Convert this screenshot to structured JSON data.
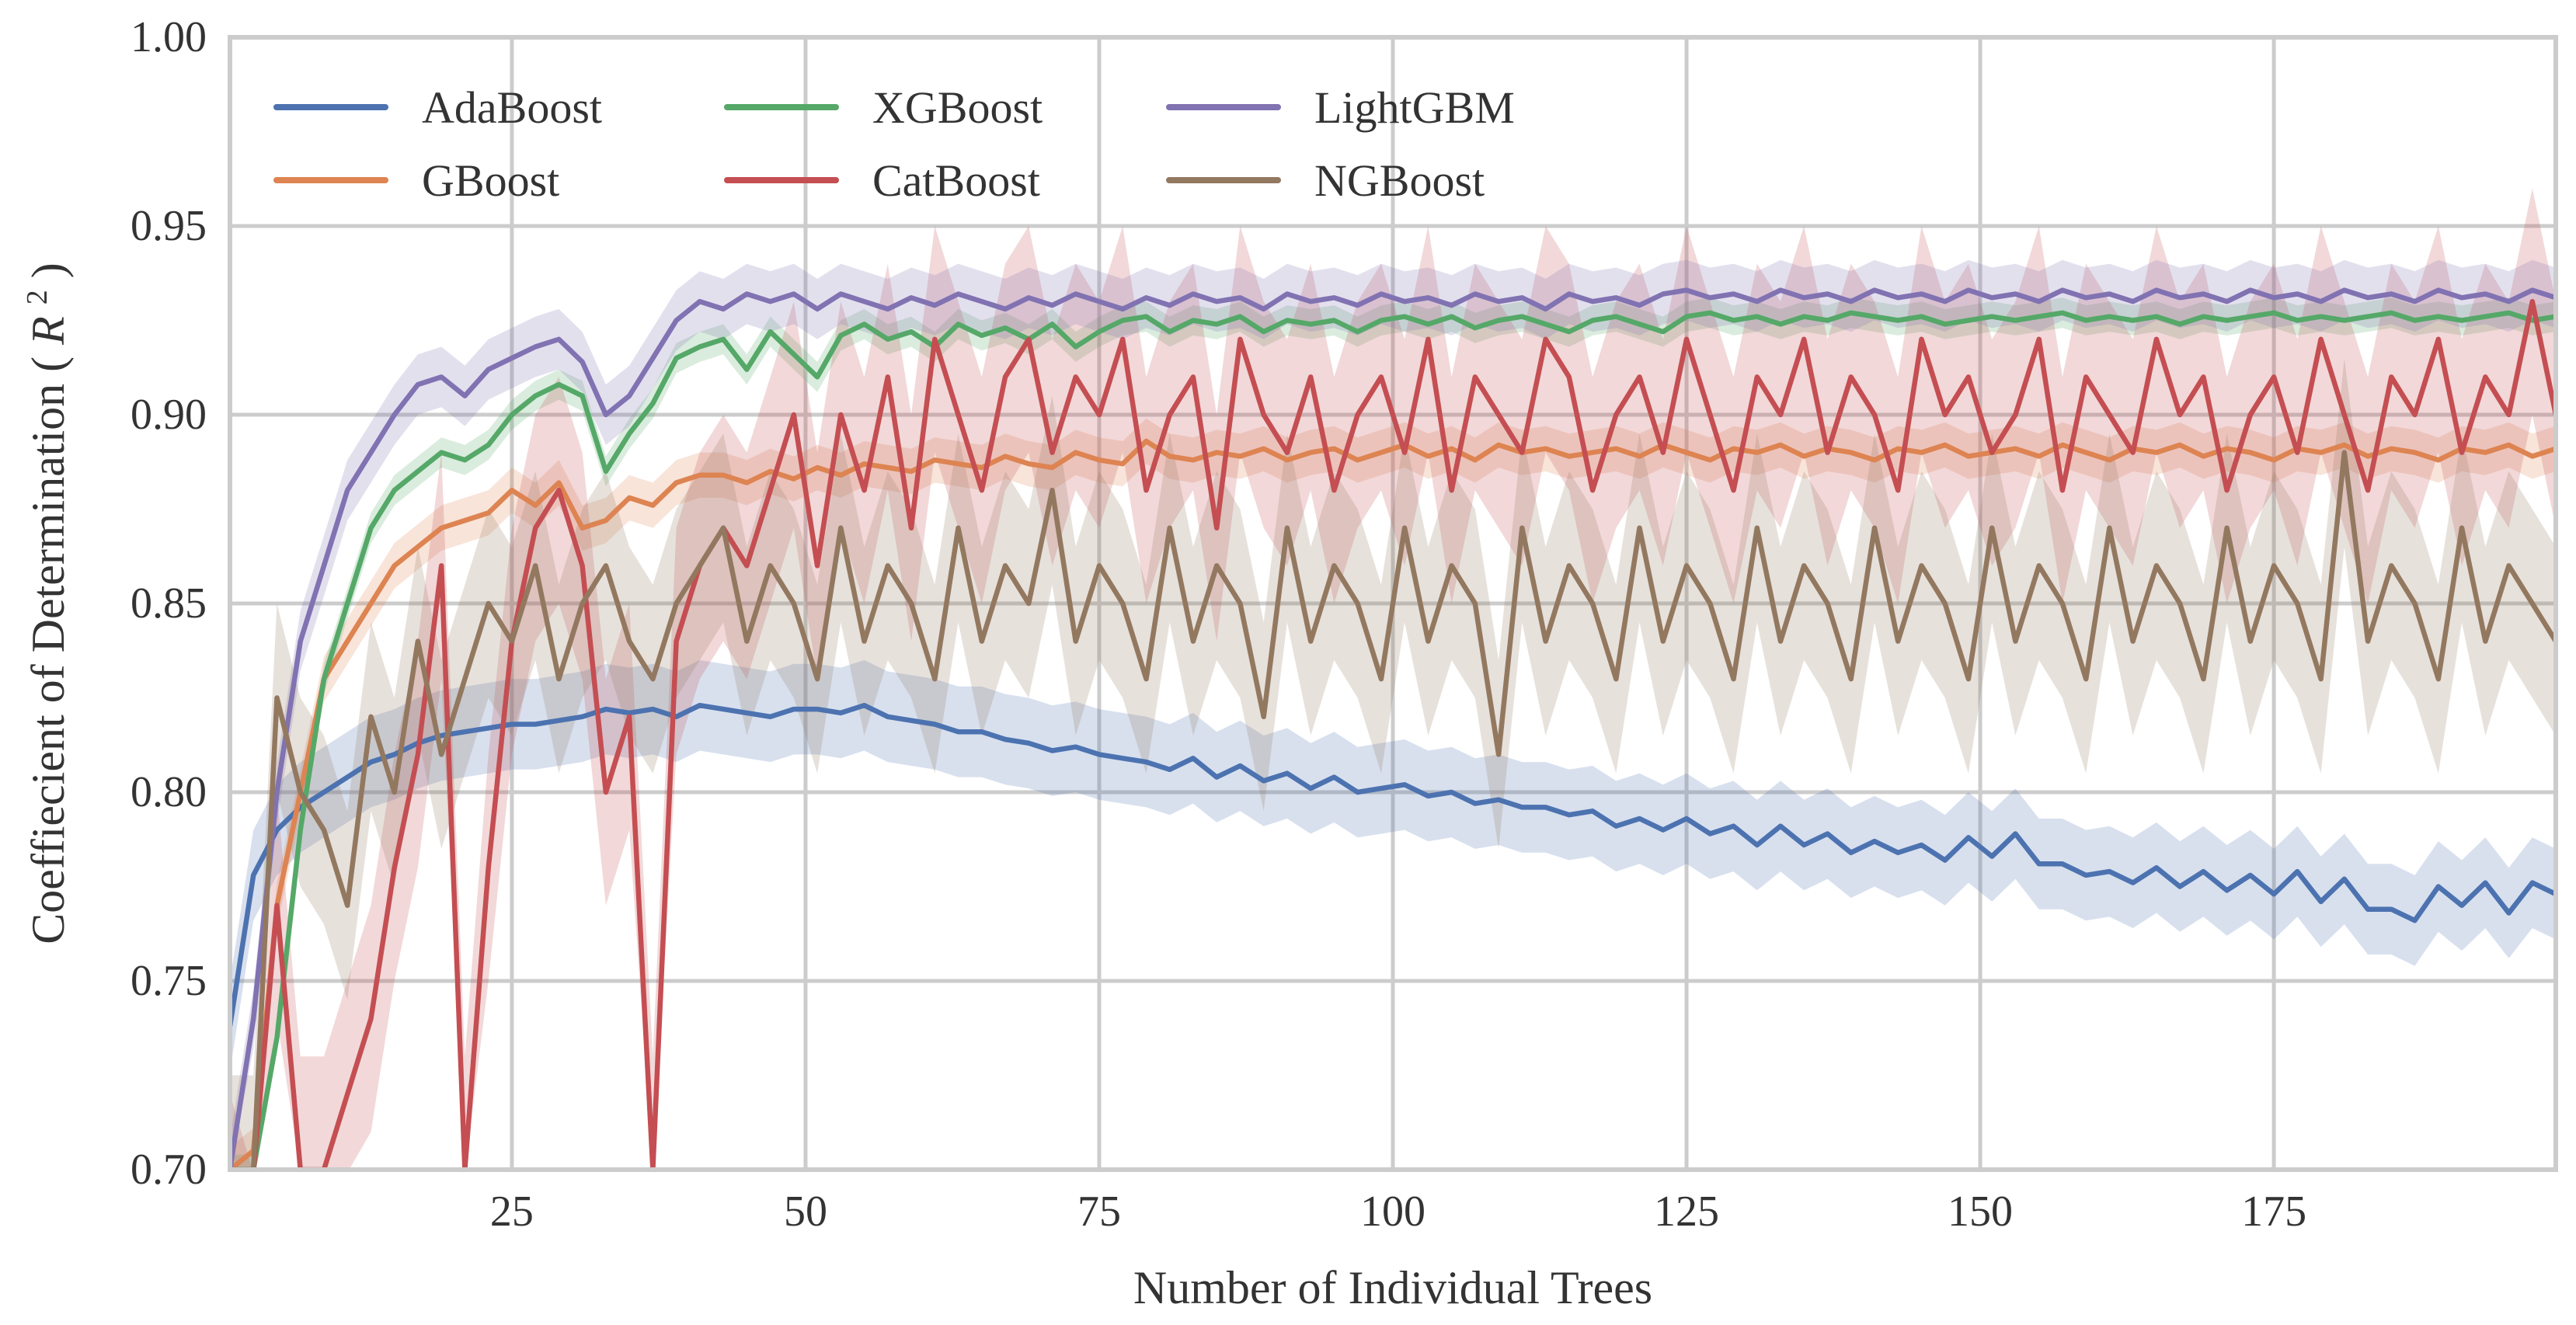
{
  "chart_data": {
    "type": "line",
    "title": "",
    "xlabel": "Number of Individual Trees",
    "ylabel": "Coeffiecient of Determination",
    "ylabel_symbol": "R",
    "ylabel_superscript": "2",
    "xlim": [
      1,
      199
    ],
    "ylim": [
      0.7,
      1.0
    ],
    "xticks": [
      25,
      50,
      75,
      100,
      125,
      150,
      175
    ],
    "yticks": [
      0.7,
      0.75,
      0.8,
      0.85,
      0.9,
      0.95,
      1.0
    ],
    "ytick_labels": [
      "0.70",
      "0.75",
      "0.80",
      "0.85",
      "0.90",
      "0.95",
      "1.00"
    ],
    "grid": true,
    "legend_position": "top-left",
    "legend_columns": 3,
    "x": [
      1,
      3,
      5,
      7,
      9,
      11,
      13,
      15,
      17,
      19,
      21,
      23,
      25,
      27,
      29,
      31,
      33,
      35,
      37,
      39,
      41,
      43,
      45,
      47,
      49,
      51,
      53,
      55,
      57,
      59,
      61,
      63,
      65,
      67,
      69,
      71,
      73,
      75,
      77,
      79,
      81,
      83,
      85,
      87,
      89,
      91,
      93,
      95,
      97,
      99,
      101,
      103,
      105,
      107,
      109,
      111,
      113,
      115,
      117,
      119,
      121,
      123,
      125,
      127,
      129,
      131,
      133,
      135,
      137,
      139,
      141,
      143,
      145,
      147,
      149,
      151,
      153,
      155,
      157,
      159,
      161,
      163,
      165,
      167,
      169,
      171,
      173,
      175,
      177,
      179,
      181,
      183,
      185,
      187,
      189,
      191,
      193,
      195,
      197,
      199
    ],
    "series": [
      {
        "name": "AdaBoost",
        "color": "#4c72b0",
        "band_width": 0.012,
        "values": [
          0.738,
          0.778,
          0.79,
          0.796,
          0.8,
          0.804,
          0.808,
          0.81,
          0.813,
          0.815,
          0.816,
          0.817,
          0.818,
          0.818,
          0.819,
          0.82,
          0.822,
          0.821,
          0.822,
          0.82,
          0.823,
          0.822,
          0.821,
          0.82,
          0.822,
          0.822,
          0.821,
          0.823,
          0.82,
          0.819,
          0.818,
          0.816,
          0.816,
          0.814,
          0.813,
          0.811,
          0.812,
          0.81,
          0.809,
          0.808,
          0.806,
          0.809,
          0.804,
          0.807,
          0.803,
          0.805,
          0.801,
          0.804,
          0.8,
          0.801,
          0.802,
          0.799,
          0.8,
          0.797,
          0.798,
          0.796,
          0.796,
          0.794,
          0.795,
          0.791,
          0.793,
          0.79,
          0.793,
          0.789,
          0.791,
          0.786,
          0.791,
          0.786,
          0.789,
          0.784,
          0.787,
          0.784,
          0.786,
          0.782,
          0.788,
          0.783,
          0.789,
          0.781,
          0.781,
          0.778,
          0.779,
          0.776,
          0.78,
          0.775,
          0.779,
          0.774,
          0.778,
          0.773,
          0.779,
          0.771,
          0.777,
          0.769,
          0.769,
          0.766,
          0.775,
          0.77,
          0.776,
          0.768,
          0.776,
          0.773
        ]
      },
      {
        "name": "GBoost",
        "color": "#dd8452",
        "band_width": 0.006,
        "values": [
          0.7,
          0.705,
          0.77,
          0.8,
          0.83,
          0.84,
          0.85,
          0.86,
          0.865,
          0.87,
          0.872,
          0.874,
          0.88,
          0.876,
          0.882,
          0.87,
          0.872,
          0.878,
          0.876,
          0.882,
          0.884,
          0.884,
          0.882,
          0.885,
          0.883,
          0.886,
          0.884,
          0.887,
          0.886,
          0.885,
          0.888,
          0.887,
          0.886,
          0.889,
          0.887,
          0.886,
          0.89,
          0.888,
          0.887,
          0.893,
          0.889,
          0.888,
          0.89,
          0.889,
          0.891,
          0.888,
          0.89,
          0.891,
          0.888,
          0.89,
          0.892,
          0.889,
          0.891,
          0.888,
          0.892,
          0.89,
          0.891,
          0.889,
          0.89,
          0.891,
          0.889,
          0.892,
          0.89,
          0.888,
          0.891,
          0.89,
          0.892,
          0.889,
          0.891,
          0.89,
          0.888,
          0.891,
          0.89,
          0.892,
          0.889,
          0.89,
          0.891,
          0.889,
          0.892,
          0.89,
          0.888,
          0.891,
          0.89,
          0.892,
          0.889,
          0.891,
          0.89,
          0.888,
          0.891,
          0.89,
          0.892,
          0.889,
          0.891,
          0.89,
          0.888,
          0.891,
          0.89,
          0.892,
          0.889,
          0.891
        ]
      },
      {
        "name": "XGBoost",
        "color": "#55a868",
        "band_width": 0.004,
        "values": [
          0.7,
          0.7,
          0.735,
          0.79,
          0.83,
          0.85,
          0.87,
          0.88,
          0.885,
          0.89,
          0.888,
          0.892,
          0.9,
          0.905,
          0.908,
          0.905,
          0.885,
          0.895,
          0.903,
          0.915,
          0.918,
          0.92,
          0.912,
          0.922,
          0.916,
          0.91,
          0.921,
          0.924,
          0.92,
          0.922,
          0.918,
          0.924,
          0.921,
          0.923,
          0.92,
          0.924,
          0.918,
          0.922,
          0.925,
          0.926,
          0.922,
          0.925,
          0.924,
          0.926,
          0.922,
          0.925,
          0.924,
          0.925,
          0.922,
          0.925,
          0.926,
          0.924,
          0.926,
          0.923,
          0.925,
          0.926,
          0.924,
          0.922,
          0.925,
          0.926,
          0.924,
          0.922,
          0.926,
          0.927,
          0.925,
          0.926,
          0.924,
          0.926,
          0.925,
          0.927,
          0.926,
          0.925,
          0.926,
          0.924,
          0.925,
          0.926,
          0.925,
          0.926,
          0.927,
          0.925,
          0.926,
          0.925,
          0.926,
          0.924,
          0.926,
          0.925,
          0.926,
          0.927,
          0.925,
          0.926,
          0.925,
          0.926,
          0.927,
          0.925,
          0.926,
          0.925,
          0.926,
          0.927,
          0.925,
          0.926
        ]
      },
      {
        "name": "CatBoost",
        "color": "#c44e52",
        "band_width": 0.03,
        "values": [
          0.69,
          0.65,
          0.77,
          0.7,
          0.7,
          0.72,
          0.74,
          0.78,
          0.81,
          0.86,
          0.7,
          0.78,
          0.84,
          0.87,
          0.88,
          0.86,
          0.8,
          0.82,
          0.7,
          0.84,
          0.86,
          0.87,
          0.86,
          0.88,
          0.9,
          0.86,
          0.9,
          0.88,
          0.91,
          0.87,
          0.92,
          0.9,
          0.88,
          0.91,
          0.92,
          0.89,
          0.91,
          0.9,
          0.92,
          0.88,
          0.9,
          0.91,
          0.87,
          0.92,
          0.9,
          0.89,
          0.91,
          0.88,
          0.9,
          0.91,
          0.89,
          0.92,
          0.88,
          0.91,
          0.9,
          0.89,
          0.92,
          0.91,
          0.88,
          0.9,
          0.91,
          0.89,
          0.92,
          0.9,
          0.88,
          0.91,
          0.9,
          0.92,
          0.89,
          0.91,
          0.9,
          0.88,
          0.92,
          0.9,
          0.91,
          0.89,
          0.9,
          0.92,
          0.88,
          0.91,
          0.9,
          0.89,
          0.92,
          0.9,
          0.91,
          0.88,
          0.9,
          0.91,
          0.89,
          0.92,
          0.9,
          0.88,
          0.91,
          0.9,
          0.92,
          0.89,
          0.91,
          0.9,
          0.93,
          0.9
        ]
      },
      {
        "name": "LightGBM",
        "color": "#8172b2",
        "band_width": 0.008,
        "values": [
          0.7,
          0.74,
          0.8,
          0.84,
          0.86,
          0.88,
          0.89,
          0.9,
          0.908,
          0.91,
          0.905,
          0.912,
          0.915,
          0.918,
          0.92,
          0.914,
          0.9,
          0.905,
          0.915,
          0.925,
          0.93,
          0.928,
          0.932,
          0.93,
          0.932,
          0.928,
          0.932,
          0.93,
          0.928,
          0.931,
          0.929,
          0.932,
          0.93,
          0.928,
          0.931,
          0.929,
          0.932,
          0.93,
          0.928,
          0.931,
          0.929,
          0.932,
          0.93,
          0.931,
          0.928,
          0.932,
          0.93,
          0.931,
          0.929,
          0.932,
          0.93,
          0.931,
          0.929,
          0.932,
          0.93,
          0.931,
          0.928,
          0.932,
          0.93,
          0.931,
          0.929,
          0.932,
          0.933,
          0.931,
          0.932,
          0.93,
          0.933,
          0.931,
          0.932,
          0.93,
          0.933,
          0.931,
          0.932,
          0.93,
          0.933,
          0.931,
          0.932,
          0.93,
          0.933,
          0.931,
          0.932,
          0.93,
          0.933,
          0.931,
          0.932,
          0.93,
          0.933,
          0.931,
          0.932,
          0.93,
          0.933,
          0.931,
          0.932,
          0.93,
          0.933,
          0.931,
          0.932,
          0.93,
          0.933,
          0.931
        ]
      },
      {
        "name": "NGBoost",
        "color": "#937860",
        "band_width": 0.025,
        "values": [
          0.7,
          0.7,
          0.825,
          0.8,
          0.79,
          0.77,
          0.82,
          0.8,
          0.84,
          0.81,
          0.83,
          0.85,
          0.84,
          0.86,
          0.83,
          0.85,
          0.86,
          0.84,
          0.83,
          0.85,
          0.86,
          0.87,
          0.84,
          0.86,
          0.85,
          0.83,
          0.87,
          0.84,
          0.86,
          0.85,
          0.83,
          0.87,
          0.84,
          0.86,
          0.85,
          0.88,
          0.84,
          0.86,
          0.85,
          0.83,
          0.87,
          0.84,
          0.86,
          0.85,
          0.82,
          0.87,
          0.84,
          0.86,
          0.85,
          0.83,
          0.87,
          0.84,
          0.86,
          0.85,
          0.81,
          0.87,
          0.84,
          0.86,
          0.85,
          0.83,
          0.87,
          0.84,
          0.86,
          0.85,
          0.83,
          0.87,
          0.84,
          0.86,
          0.85,
          0.83,
          0.87,
          0.84,
          0.86,
          0.85,
          0.83,
          0.87,
          0.84,
          0.86,
          0.85,
          0.83,
          0.87,
          0.84,
          0.86,
          0.85,
          0.83,
          0.87,
          0.84,
          0.86,
          0.85,
          0.83,
          0.89,
          0.84,
          0.86,
          0.85,
          0.83,
          0.87,
          0.84,
          0.86,
          0.85,
          0.84
        ]
      }
    ]
  }
}
